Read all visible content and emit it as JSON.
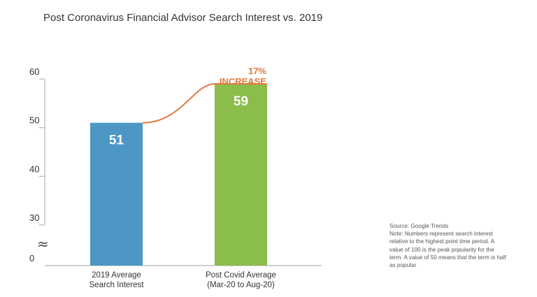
{
  "title": "Post Coronavirus Financial Advisor Search Interest vs. 2019",
  "chart_data": {
    "type": "bar",
    "categories": [
      [
        "2019 Average",
        "Search Interest"
      ],
      [
        "Post Covid Average",
        "(Mar-20 to Aug-20)"
      ]
    ],
    "values": [
      51,
      59
    ],
    "value_labels": [
      "51",
      "59"
    ],
    "colors": [
      "#4c97c6",
      "#8bbd4b"
    ],
    "y_ticks": [
      "60",
      "50",
      "40",
      "30",
      "0"
    ],
    "axis_break_symbol": "≈",
    "ylim_visible": [
      30,
      60
    ],
    "grid": false,
    "annotation": {
      "lines": [
        "17%",
        "INCREASE"
      ],
      "color": "#e07a3f"
    }
  },
  "note": {
    "lines": [
      "Source: Google Trends",
      "Note: Numbers represent search interest",
      "relative to the highest point time period. A",
      "value of 100 is the peak popularity for the",
      "term. A value of 50 means that the term is half",
      "as popular"
    ]
  }
}
